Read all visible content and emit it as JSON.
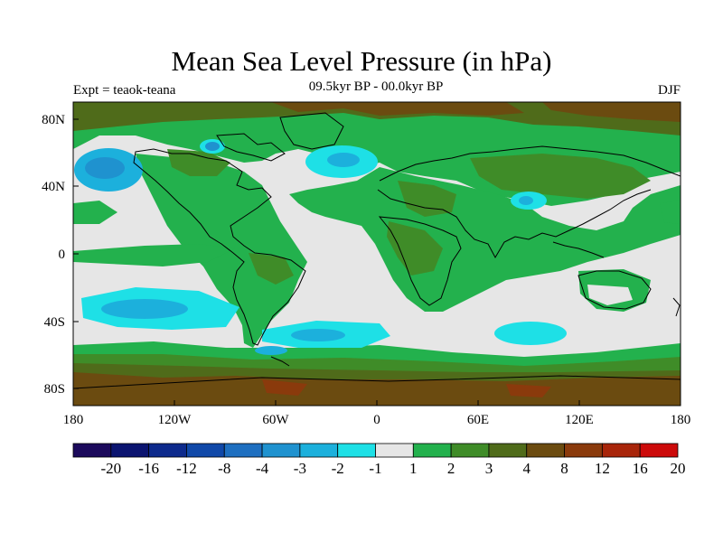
{
  "figure": {
    "title": "Mean Sea Level Pressure (in hPa)",
    "experiment_label": "Expt = teaok-teana",
    "period_label": "09.5kyr BP - 00.0kyr BP",
    "season_label": "DJF"
  },
  "map": {
    "projection": "cylindrical equidistant",
    "lon_ticks": [
      "180",
      "120W",
      "60W",
      "0",
      "60E",
      "120E",
      "180"
    ],
    "lat_ticks": [
      "80N",
      "40N",
      "0",
      "40S",
      "80S"
    ],
    "coastlines": true
  },
  "colorbar": {
    "levels": [
      "-20",
      "-16",
      "-12",
      "-8",
      "-4",
      "-3",
      "-2",
      "-1",
      "1",
      "2",
      "3",
      "4",
      "8",
      "12",
      "16",
      "20"
    ],
    "colors": [
      "#1c0a5c",
      "#0b1470",
      "#0d2a8c",
      "#1048a8",
      "#1e6fc0",
      "#1f92cf",
      "#1cb0dc",
      "#1ee0e6",
      "#e6e6e6",
      "#23b14d",
      "#3f8c28",
      "#4f6b1a",
      "#6b4b10",
      "#8a3a0c",
      "#a8250a",
      "#cc0a0a"
    ]
  },
  "palette": {
    "background": "#e6e6e6",
    "land_green": "#23b14d",
    "dark_green": "#3f8c28",
    "olive": "#4f6b1a",
    "brown": "#6b4b10",
    "cyan": "#1ee0e6",
    "light_blue": "#1cb0dc",
    "mid_blue": "#1f92cf",
    "deep_blue": "#1e6fc0"
  }
}
